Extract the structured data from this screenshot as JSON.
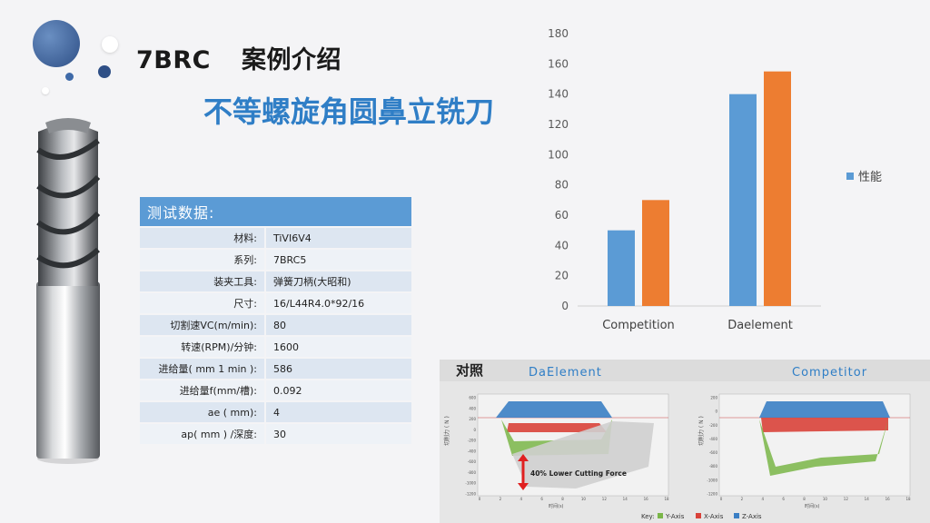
{
  "heading": {
    "code": "7BRC",
    "text": "案例介绍"
  },
  "subtitle": "不等螺旋角圆鼻立铣刀",
  "test_table": {
    "header": "测试数据:",
    "rows": [
      {
        "label": "材料:",
        "value": "TiVI6V4"
      },
      {
        "label": "系列:",
        "value": "7BRC5"
      },
      {
        "label": "装夹工具:",
        "value": "弹簧刀柄(大昭和)"
      },
      {
        "label": "尺寸:",
        "value": "16/L44R4.0*92/16"
      },
      {
        "label": "切割速VC(m/min):",
        "value": "80"
      },
      {
        "label": "转速(RPM)/分钟:",
        "value": "1600"
      },
      {
        "label": "进给量( mm 1 min ):",
        "value": "586"
      },
      {
        "label": "进给量f(mm/槽):",
        "value": "0.092"
      },
      {
        "label": "ae ( mm):",
        "value": "4"
      },
      {
        "label": "ap( mm ) /深度:",
        "value": "30"
      }
    ]
  },
  "chart_data": {
    "type": "bar",
    "categories": [
      "Competition",
      "Daelement"
    ],
    "series": [
      {
        "values": [
          50,
          140
        ],
        "color": "#5b9bd5"
      },
      {
        "values": [
          70,
          155
        ],
        "color": "#ed7d31"
      }
    ],
    "legend": {
      "label": "性能",
      "color": "#5b9bd5",
      "placement": "right"
    },
    "ylim": [
      0,
      180
    ],
    "yticks": [
      0,
      20,
      40,
      60,
      80,
      100,
      120,
      140,
      160,
      180
    ],
    "grid": false
  },
  "comparison": {
    "title": "对照",
    "left_label": "DaElement",
    "right_label": "Competitor",
    "annotation": "40% Lower Cutting Force",
    "y_axis_label": "切削力 ( N )",
    "x_axis_label": "时间(s)",
    "x_ticks": [
      "0",
      "2",
      "4",
      "6",
      "8",
      "10",
      "12",
      "14",
      "16",
      "18"
    ],
    "y_ticks_left": [
      "600",
      "400",
      "200",
      "0",
      "-200",
      "-400",
      "-600",
      "-800",
      "-1000",
      "-1200"
    ],
    "y_ticks_right": [
      "200",
      "0",
      "-200",
      "-400",
      "-600",
      "-800",
      "-1000",
      "-1200"
    ],
    "legend_key": "Key:",
    "legend": [
      {
        "label": "Y-Axis",
        "color": "#7ab648"
      },
      {
        "label": "X-Axis",
        "color": "#d9423a"
      },
      {
        "label": "Z-Axis",
        "color": "#3b7fc4"
      }
    ]
  }
}
